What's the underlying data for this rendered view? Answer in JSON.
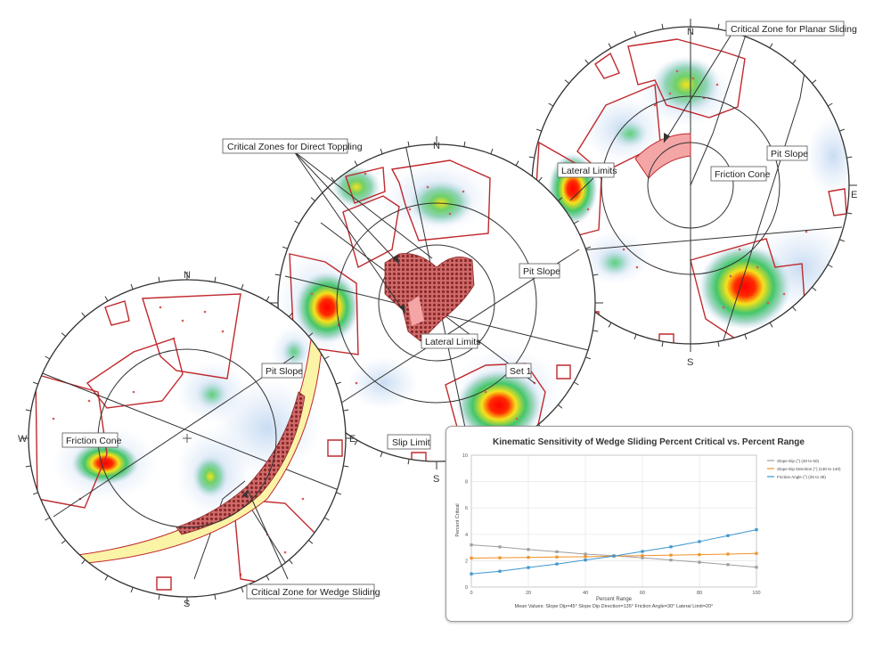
{
  "labels": {
    "critical_planar": "Critical Zone for Planar Sliding",
    "critical_toppling": "Critical Zones for Direct Toppling",
    "critical_wedge": "Critical Zone for Wedge Sliding",
    "pit_slope_a": "Pit Slope",
    "pit_slope_b": "Pit Slope",
    "pit_slope_c": "Pit Slope",
    "friction_cone_a": "Friction Cone",
    "friction_cone_c": "Friction Cone",
    "lateral_limits_b": "Lateral Limits",
    "lateral_limits_c": "Lateral Limits",
    "set1": "Set 1",
    "slip_limit": "Slip Limit"
  },
  "directions": {
    "a_n": "N",
    "a_w": "W",
    "a_e": "E",
    "a_s": "S",
    "b_n": "N",
    "b_s": "S",
    "c_n": "N",
    "c_e": "E",
    "c_s": "S"
  },
  "colors": {
    "ring": "#333333",
    "limits": "#c0282d",
    "wedge_zone": "#fbf3a6",
    "density_low": "#c9dcf2",
    "density_mid": "#43c66a",
    "density_hot": "#ff0000",
    "series_dip": "#9e9e9e",
    "series_dipdir": "#f0922b",
    "series_friction": "#3c96cf"
  },
  "chart_data": {
    "type": "line",
    "title": "Kinematic Sensitivity of Wedge Sliding Percent Critical vs. Percent Range",
    "xlabel": "Percent Range",
    "ylabel": "Percent Critical",
    "subtitle": "Mean Values: Slope Dip=45° Slope Dip Direction=135° Friction Angle=30° Lateral Limit=20°",
    "xlim": [
      0,
      100
    ],
    "ylim": [
      0,
      10
    ],
    "xticks": [
      0,
      20,
      40,
      60,
      80,
      100
    ],
    "yticks": [
      0,
      2,
      4,
      6,
      8,
      10
    ],
    "x": [
      0,
      10,
      20,
      30,
      40,
      50,
      60,
      70,
      80,
      90,
      100
    ],
    "grid": true,
    "legend_position": "right",
    "series": [
      {
        "name": "Slope Dip (°) (40 to 50)",
        "values": [
          3.2,
          3.05,
          2.85,
          2.68,
          2.5,
          2.38,
          2.22,
          2.05,
          1.88,
          1.7,
          1.5
        ]
      },
      {
        "name": "Slope Dip Direction (°) (130 to 140)",
        "values": [
          2.2,
          2.22,
          2.25,
          2.28,
          2.3,
          2.35,
          2.38,
          2.42,
          2.46,
          2.5,
          2.55
        ]
      },
      {
        "name": "Friction Angle (°) (25 to 35)",
        "values": [
          1.0,
          1.2,
          1.48,
          1.75,
          2.05,
          2.35,
          2.7,
          3.05,
          3.45,
          3.9,
          4.35
        ]
      }
    ]
  }
}
